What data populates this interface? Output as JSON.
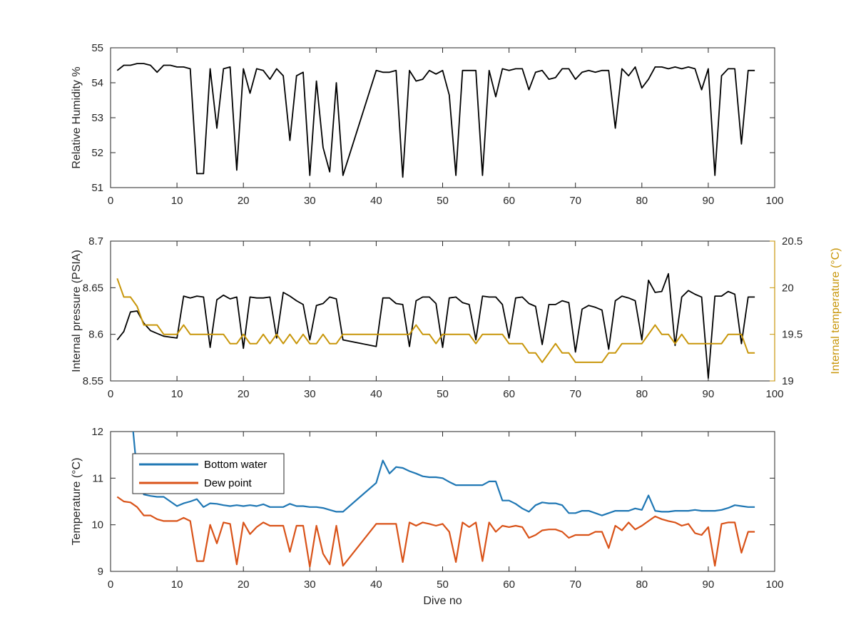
{
  "chart_data": [
    {
      "type": "line",
      "ylabel": "Relative Humidity %",
      "xlabel": "",
      "xlim": [
        0,
        100
      ],
      "ylim": [
        51,
        55
      ],
      "xticks": [
        0,
        10,
        20,
        30,
        40,
        50,
        60,
        70,
        80,
        90,
        100
      ],
      "yticks": [
        51,
        52,
        53,
        54,
        55
      ],
      "series": [
        {
          "color": "#000000",
          "x": [
            1,
            2,
            3,
            4,
            5,
            6,
            7,
            8,
            9,
            10,
            11,
            12,
            13,
            14,
            15,
            16,
            17,
            18,
            19,
            20,
            21,
            22,
            23,
            24,
            25,
            26,
            27,
            28,
            29,
            30,
            31,
            32,
            33,
            34,
            35,
            40,
            41,
            42,
            43,
            44,
            45,
            46,
            47,
            48,
            49,
            50,
            51,
            52,
            53,
            54,
            55,
            56,
            57,
            58,
            59,
            60,
            61,
            62,
            63,
            64,
            65,
            66,
            67,
            68,
            69,
            70,
            71,
            72,
            73,
            74,
            75,
            76,
            77,
            78,
            79,
            80,
            81,
            82,
            83,
            84,
            85,
            86,
            87,
            88,
            89,
            90,
            91,
            92,
            93,
            94,
            95,
            96,
            97
          ],
          "values": [
            54.35,
            54.5,
            54.5,
            54.55,
            54.55,
            54.5,
            54.3,
            54.5,
            54.5,
            54.45,
            54.45,
            54.4,
            51.4,
            51.4,
            54.4,
            52.7,
            54.4,
            54.45,
            51.5,
            54.4,
            53.7,
            54.4,
            54.35,
            54.1,
            54.4,
            54.2,
            52.35,
            54.2,
            54.3,
            51.35,
            54.05,
            52.15,
            51.45,
            54,
            51.35,
            54.35,
            54.3,
            54.3,
            54.35,
            51.3,
            54.35,
            54.05,
            54.1,
            54.35,
            54.25,
            54.35,
            53.65,
            51.35,
            54.35,
            54.35,
            54.35,
            51.35,
            54.35,
            53.6,
            54.4,
            54.35,
            54.4,
            54.4,
            53.8,
            54.3,
            54.35,
            54.1,
            54.15,
            54.4,
            54.4,
            54.1,
            54.3,
            54.35,
            54.3,
            54.35,
            54.35,
            52.7,
            54.4,
            54.2,
            54.45,
            53.85,
            54.1,
            54.45,
            54.45,
            54.4,
            54.45,
            54.4,
            54.45,
            54.4,
            53.8,
            54.4,
            51.35,
            54.2,
            54.4,
            54.4,
            52.25,
            54.35,
            54.35
          ]
        }
      ]
    },
    {
      "type": "line",
      "xlabel": "",
      "xlim": [
        0,
        100
      ],
      "xticks": [
        0,
        10,
        20,
        30,
        40,
        50,
        60,
        70,
        80,
        90,
        100
      ],
      "ylabel": "Internal pressure (PSIA)",
      "ylim": [
        8.55,
        8.7
      ],
      "yticks": [
        "8.55",
        "8.6",
        "8.65",
        "8.7"
      ],
      "y2label": "Internal temperature (°C)",
      "y2lim": [
        19,
        20.5
      ],
      "y2ticks": [
        "19",
        "19.5",
        "20",
        "20.5"
      ],
      "series": [
        {
          "axis": "left",
          "color": "#000000",
          "x": [
            1,
            2,
            3,
            4,
            5,
            6,
            7,
            8,
            9,
            10,
            11,
            12,
            13,
            14,
            15,
            16,
            17,
            18,
            19,
            20,
            21,
            22,
            23,
            24,
            25,
            26,
            27,
            28,
            29,
            30,
            31,
            32,
            33,
            34,
            35,
            40,
            41,
            42,
            43,
            44,
            45,
            46,
            47,
            48,
            49,
            50,
            51,
            52,
            53,
            54,
            55,
            56,
            57,
            58,
            59,
            60,
            61,
            62,
            63,
            64,
            65,
            66,
            67,
            68,
            69,
            70,
            71,
            72,
            73,
            74,
            75,
            76,
            77,
            78,
            79,
            80,
            81,
            82,
            83,
            84,
            85,
            86,
            87,
            88,
            89,
            90,
            91,
            92,
            93,
            94,
            95,
            96,
            97
          ],
          "values": [
            8.594,
            8.603,
            8.624,
            8.625,
            8.612,
            8.604,
            8.601,
            8.598,
            8.597,
            8.596,
            8.641,
            8.639,
            8.641,
            8.64,
            8.586,
            8.637,
            8.642,
            8.638,
            8.64,
            8.585,
            8.64,
            8.639,
            8.639,
            8.64,
            8.596,
            8.645,
            8.641,
            8.636,
            8.632,
            8.594,
            8.631,
            8.633,
            8.64,
            8.638,
            8.594,
            8.587,
            8.639,
            8.639,
            8.633,
            8.632,
            8.587,
            8.636,
            8.64,
            8.64,
            8.633,
            8.586,
            8.639,
            8.64,
            8.634,
            8.632,
            8.594,
            8.641,
            8.64,
            8.64,
            8.632,
            8.596,
            8.639,
            8.64,
            8.633,
            8.63,
            8.589,
            8.632,
            8.632,
            8.636,
            8.634,
            8.581,
            8.627,
            8.631,
            8.629,
            8.626,
            8.584,
            8.636,
            8.641,
            8.639,
            8.636,
            8.594,
            8.658,
            8.645,
            8.646,
            8.665,
            8.588,
            8.64,
            8.647,
            8.643,
            8.64,
            8.553,
            8.641,
            8.641,
            8.646,
            8.643,
            8.59,
            8.64,
            8.64
          ]
        },
        {
          "axis": "right",
          "color": "#c8960a",
          "x": [
            1,
            2,
            3,
            4,
            5,
            6,
            7,
            8,
            9,
            10,
            11,
            12,
            13,
            14,
            15,
            16,
            17,
            18,
            19,
            20,
            21,
            22,
            23,
            24,
            25,
            26,
            27,
            28,
            29,
            30,
            31,
            32,
            33,
            34,
            35,
            40,
            41,
            42,
            43,
            44,
            45,
            46,
            47,
            48,
            49,
            50,
            51,
            52,
            53,
            54,
            55,
            56,
            57,
            58,
            59,
            60,
            61,
            62,
            63,
            64,
            65,
            66,
            67,
            68,
            69,
            70,
            71,
            72,
            73,
            74,
            75,
            76,
            77,
            78,
            79,
            80,
            81,
            82,
            83,
            84,
            85,
            86,
            87,
            88,
            89,
            90,
            91,
            92,
            93,
            94,
            95,
            96,
            97
          ],
          "values": [
            20.1,
            19.9,
            19.9,
            19.8,
            19.6,
            19.6,
            19.6,
            19.5,
            19.5,
            19.5,
            19.6,
            19.5,
            19.5,
            19.5,
            19.5,
            19.5,
            19.5,
            19.4,
            19.4,
            19.5,
            19.4,
            19.4,
            19.5,
            19.4,
            19.5,
            19.4,
            19.5,
            19.4,
            19.5,
            19.4,
            19.4,
            19.5,
            19.4,
            19.4,
            19.5,
            19.5,
            19.5,
            19.5,
            19.5,
            19.5,
            19.5,
            19.6,
            19.5,
            19.5,
            19.4,
            19.5,
            19.5,
            19.5,
            19.5,
            19.5,
            19.4,
            19.5,
            19.5,
            19.5,
            19.5,
            19.4,
            19.4,
            19.4,
            19.3,
            19.3,
            19.2,
            19.3,
            19.4,
            19.3,
            19.3,
            19.2,
            19.2,
            19.2,
            19.2,
            19.2,
            19.3,
            19.3,
            19.4,
            19.4,
            19.4,
            19.4,
            19.5,
            19.6,
            19.5,
            19.5,
            19.4,
            19.5,
            19.4,
            19.4,
            19.4,
            19.4,
            19.4,
            19.4,
            19.5,
            19.5,
            19.5,
            19.3,
            19.3
          ]
        }
      ]
    },
    {
      "type": "line",
      "xlabel": "Dive no",
      "ylabel": "Temperature (°C)",
      "xlim": [
        0,
        100
      ],
      "ylim": [
        9,
        12
      ],
      "xticks": [
        0,
        10,
        20,
        30,
        40,
        50,
        60,
        70,
        80,
        90,
        100
      ],
      "yticks": [
        9,
        10,
        11,
        12
      ],
      "legend": "top-left",
      "series": [
        {
          "name": "Bottom water",
          "color": "#1f77b4",
          "x": [
            3.4,
            4,
            5,
            6,
            7,
            8,
            9,
            10,
            11,
            12,
            13,
            14,
            15,
            16,
            17,
            18,
            19,
            20,
            21,
            22,
            23,
            24,
            25,
            26,
            27,
            28,
            29,
            30,
            31,
            32,
            33,
            34,
            35,
            40,
            41,
            42,
            43,
            44,
            45,
            46,
            47,
            48,
            49,
            50,
            51,
            52,
            53,
            54,
            55,
            56,
            57,
            58,
            59,
            60,
            61,
            62,
            63,
            64,
            65,
            66,
            67,
            68,
            69,
            70,
            71,
            72,
            73,
            74,
            75,
            76,
            77,
            78,
            79,
            80,
            81,
            82,
            83,
            84,
            85,
            86,
            87,
            88,
            89,
            90,
            91,
            92,
            93,
            94,
            95,
            96,
            97
          ],
          "values": [
            12,
            11.1,
            10.65,
            10.62,
            10.6,
            10.6,
            10.5,
            10.4,
            10.46,
            10.5,
            10.55,
            10.38,
            10.46,
            10.45,
            10.42,
            10.4,
            10.42,
            10.4,
            10.42,
            10.4,
            10.44,
            10.38,
            10.38,
            10.38,
            10.45,
            10.4,
            10.4,
            10.38,
            10.38,
            10.36,
            10.32,
            10.28,
            10.28,
            10.9,
            11.38,
            11.1,
            11.24,
            11.22,
            11.15,
            11.1,
            11.04,
            11.02,
            11.02,
            11,
            10.92,
            10.85,
            10.85,
            10.85,
            10.85,
            10.85,
            10.93,
            10.93,
            10.52,
            10.52,
            10.45,
            10.35,
            10.28,
            10.42,
            10.48,
            10.46,
            10.46,
            10.42,
            10.25,
            10.25,
            10.3,
            10.3,
            10.25,
            10.2,
            10.25,
            10.3,
            10.3,
            10.3,
            10.35,
            10.32,
            10.63,
            10.3,
            10.28,
            10.28,
            10.3,
            10.3,
            10.3,
            10.32,
            10.3,
            10.3,
            10.3,
            10.32,
            10.36,
            10.42,
            10.4,
            10.38,
            10.38
          ]
        },
        {
          "name": "Dew point",
          "color": "#d95319",
          "x": [
            1,
            2,
            3,
            4,
            5,
            6,
            7,
            8,
            9,
            10,
            11,
            12,
            13,
            14,
            15,
            16,
            17,
            18,
            19,
            20,
            21,
            22,
            23,
            24,
            25,
            26,
            27,
            28,
            29,
            30,
            31,
            32,
            33,
            34,
            35,
            40,
            41,
            42,
            43,
            44,
            45,
            46,
            47,
            48,
            49,
            50,
            51,
            52,
            53,
            54,
            55,
            56,
            57,
            58,
            59,
            60,
            61,
            62,
            63,
            64,
            65,
            66,
            67,
            68,
            69,
            70,
            71,
            72,
            73,
            74,
            75,
            76,
            77,
            78,
            79,
            80,
            81,
            82,
            83,
            84,
            85,
            86,
            87,
            88,
            89,
            90,
            91,
            92,
            93,
            94,
            95,
            96,
            97
          ],
          "values": [
            10.6,
            10.5,
            10.48,
            10.38,
            10.2,
            10.2,
            10.12,
            10.08,
            10.08,
            10.08,
            10.15,
            10.08,
            9.22,
            9.22,
            10,
            9.6,
            10.05,
            10.02,
            9.15,
            10.05,
            9.8,
            9.95,
            10.05,
            9.98,
            9.98,
            9.98,
            9.42,
            9.98,
            9.98,
            9.1,
            9.98,
            9.38,
            9.15,
            9.98,
            9.12,
            10.02,
            10.02,
            10.02,
            10.02,
            9.2,
            10.05,
            9.98,
            10.05,
            10.02,
            9.98,
            10.02,
            9.85,
            9.2,
            10.05,
            9.95,
            10.05,
            9.22,
            10.05,
            9.85,
            9.98,
            9.95,
            9.98,
            9.95,
            9.72,
            9.78,
            9.88,
            9.9,
            9.9,
            9.85,
            9.72,
            9.78,
            9.78,
            9.78,
            9.85,
            9.85,
            9.5,
            9.98,
            9.88,
            10.05,
            9.9,
            9.98,
            10.08,
            10.18,
            10.12,
            10.08,
            10.05,
            9.98,
            10.02,
            9.82,
            9.78,
            9.95,
            9.12,
            10.02,
            10.05,
            10.05,
            9.4,
            9.85,
            9.85
          ]
        }
      ]
    }
  ]
}
